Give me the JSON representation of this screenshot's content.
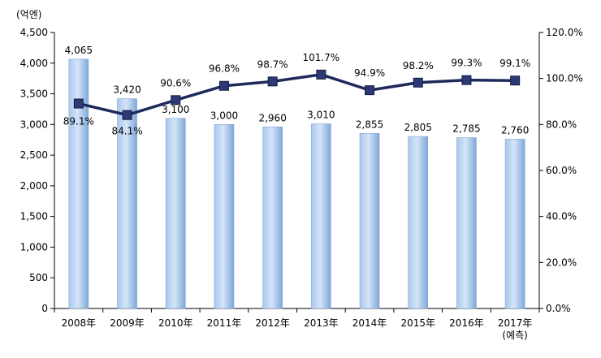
{
  "chart_data": {
    "type": "bar+line",
    "y_unit_label": "(억엔)",
    "categories": [
      "2008年",
      "2009年",
      "2010年",
      "2011年",
      "2012年",
      "2013年",
      "2014年",
      "2015年",
      "2016年",
      "2017年"
    ],
    "category_sublabels": [
      "",
      "",
      "",
      "",
      "",
      "",
      "",
      "",
      "",
      "(예측)"
    ],
    "bar_series": {
      "values": [
        4065,
        3420,
        3100,
        3000,
        2960,
        3010,
        2855,
        2805,
        2785,
        2760
      ],
      "labels": [
        "4,065",
        "3,420",
        "3,100",
        "3,000",
        "2,960",
        "3,010",
        "2,855",
        "2,805",
        "2,785",
        "2,760"
      ],
      "color": "#8DB4E2"
    },
    "line_series": {
      "values": [
        89.1,
        84.1,
        90.6,
        96.8,
        98.7,
        101.7,
        94.9,
        98.2,
        99.3,
        99.1
      ],
      "labels": [
        "89.1%",
        "84.1%",
        "90.6%",
        "96.8%",
        "98.7%",
        "101.7%",
        "94.9%",
        "98.2%",
        "99.3%",
        "99.1%"
      ],
      "color": "#1F2A5C"
    },
    "y_left": {
      "min": 0,
      "max": 4500,
      "step": 500,
      "tick_labels": [
        "0",
        "500",
        "1,000",
        "1,500",
        "2,000",
        "2,500",
        "3,000",
        "3,500",
        "4,000",
        "4,500"
      ]
    },
    "y_right": {
      "min": 0,
      "max": 120,
      "step": 20,
      "tick_labels": [
        "0.0%",
        "20.0%",
        "40.0%",
        "60.0%",
        "80.0%",
        "100.0%",
        "120.0%"
      ]
    },
    "grid": false,
    "legend": "none"
  }
}
